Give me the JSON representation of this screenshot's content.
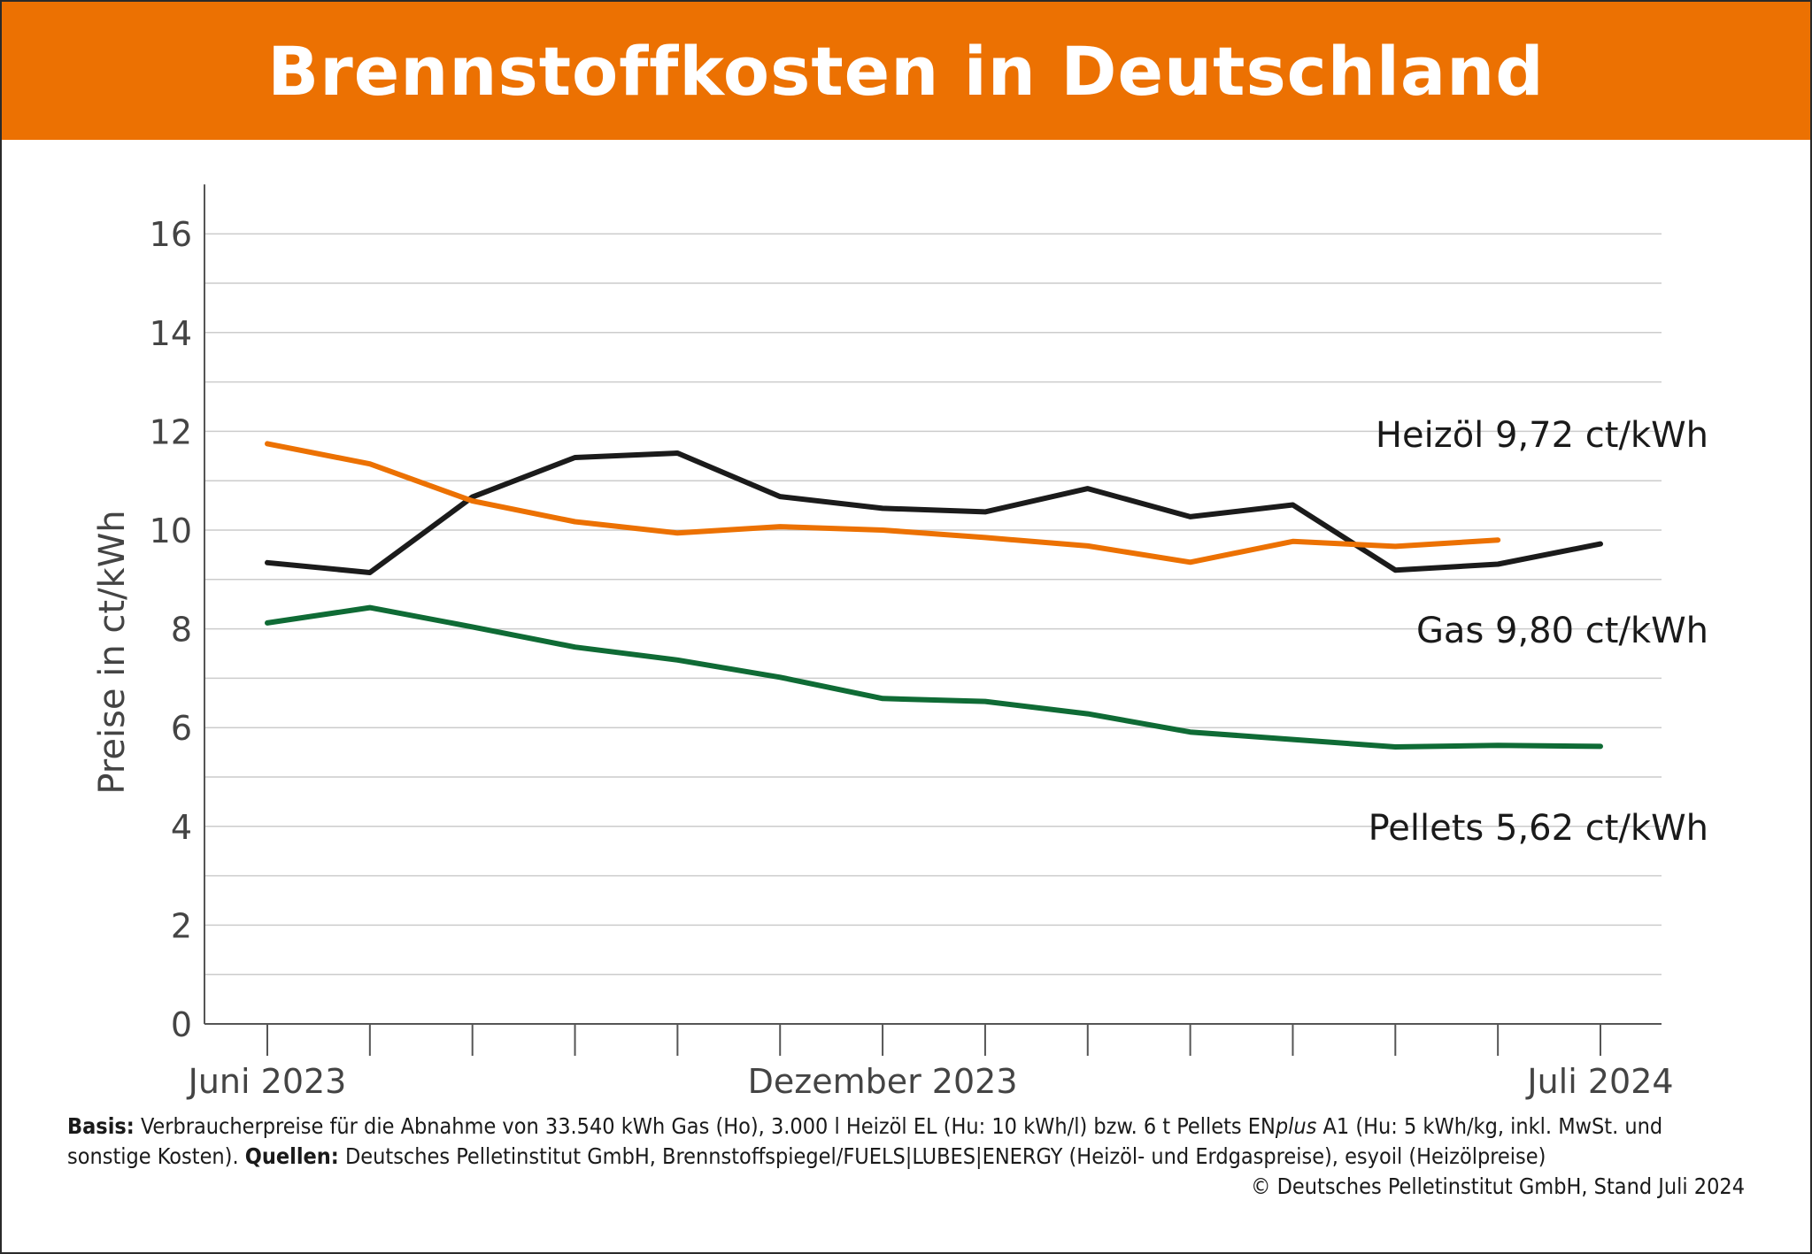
{
  "title": "Brennstoffkosten in Deutschland",
  "colors": {
    "header_bg": "#ec7102",
    "heizoel": "#1b1b1b",
    "gas": "#ec7102",
    "pellets": "#0f6b35",
    "grid": "#cccccc",
    "text": "#1a1a1a"
  },
  "chart_data": {
    "type": "line",
    "ylabel": "Preise in ct/kWh",
    "xlabel": "",
    "ylim": [
      0,
      17
    ],
    "yticks": [
      0,
      2,
      4,
      6,
      8,
      10,
      12,
      14,
      16
    ],
    "grid": true,
    "x": [
      "2023-06",
      "2023-07",
      "2023-08",
      "2023-09",
      "2023-10",
      "2023-11",
      "2023-12",
      "2024-01",
      "2024-02",
      "2024-03",
      "2024-04",
      "2024-05",
      "2024-06",
      "2024-07"
    ],
    "x_tick_labels": [
      {
        "index": 0,
        "label": "Juni 2023"
      },
      {
        "index": 6,
        "label": "Dezember 2023"
      },
      {
        "index": 13,
        "label": "Juli 2024"
      }
    ],
    "series": [
      {
        "key": "heizoel",
        "name": "Heizöl",
        "end_label_value": "9,72 ct/kWh",
        "values": [
          9.34,
          9.14,
          10.67,
          11.47,
          11.56,
          10.68,
          10.44,
          10.37,
          10.84,
          10.27,
          10.51,
          9.19,
          9.31,
          9.72
        ]
      },
      {
        "key": "gas",
        "name": "Gas",
        "end_label_value": "9,80 ct/kWh",
        "values": [
          11.75,
          11.34,
          10.59,
          10.17,
          9.94,
          10.07,
          10.0,
          9.85,
          9.68,
          9.35,
          9.77,
          9.67,
          9.8,
          null
        ]
      },
      {
        "key": "pellets",
        "name": "Pellets",
        "end_label_value": "5,62 ct/kWh",
        "values": [
          8.12,
          8.43,
          8.04,
          7.63,
          7.37,
          7.02,
          6.59,
          6.53,
          6.28,
          5.91,
          5.76,
          5.61,
          5.64,
          5.62
        ]
      }
    ]
  },
  "footer": {
    "basis_label": "Basis:",
    "basis_text_1": " Verbraucherpreise für die Abnahme von 33.540 kWh Gas (Ho), 3.000 l Heizöl EL (Hu: 10 kWh/l) bzw. 6 t Pellets EN",
    "basis_italic": "plus",
    "basis_text_2": " A1 (Hu: 5 kWh/kg, inkl. MwSt. und",
    "line2_text": "sonstige Kosten). ",
    "quellen_label": "Quellen:",
    "quellen_text": " Deutsches Pelletinstitut GmbH, Brennstoffspiegel/FUELS|LUBES|ENERGY (Heizöl- und Erdgaspreise), esyoil (Heizölpreise)",
    "copyright": "© Deutsches Pelletinstitut GmbH, Stand Juli 2024"
  }
}
